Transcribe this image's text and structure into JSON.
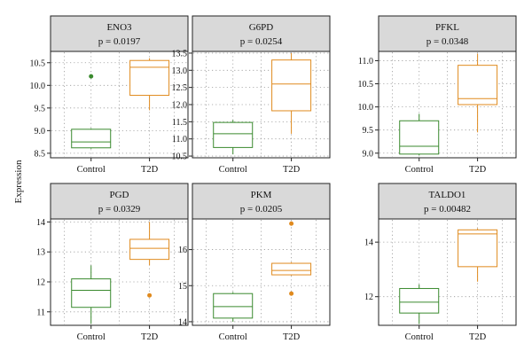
{
  "ylabel": "Expression",
  "colors": {
    "control": "#3a8a2e",
    "t2d": "#e08a1e",
    "header_bg": "#d9d9d9",
    "grid": "#9a9a9a"
  },
  "chart_data": [
    {
      "type": "box",
      "gene": "ENO3",
      "pvalue": "p = 0.0197",
      "categories": [
        "Control",
        "T2D"
      ],
      "ylim": [
        8.4,
        10.75
      ],
      "yticks": [
        "8.5",
        "9.0",
        "9.5",
        "10.0",
        "10.5"
      ],
      "boxes": [
        {
          "name": "Control",
          "whislo": 8.6,
          "q1": 8.62,
          "med": 8.75,
          "q3": 9.03,
          "whishi": 9.05,
          "outliers": [
            10.2
          ]
        },
        {
          "name": "T2D",
          "whislo": 9.45,
          "q1": 9.78,
          "med": 10.4,
          "q3": 10.55,
          "whishi": 10.6,
          "outliers": []
        }
      ]
    },
    {
      "type": "box",
      "gene": "G6PD",
      "pvalue": "p = 0.0254",
      "categories": [
        "Control",
        "T2D"
      ],
      "ylim": [
        10.45,
        13.55
      ],
      "yticks": [
        "10.5",
        "11.0",
        "11.5",
        "12.0",
        "12.5",
        "13.0",
        "13.5"
      ],
      "boxes": [
        {
          "name": "Control",
          "whislo": 10.55,
          "q1": 10.75,
          "med": 11.15,
          "q3": 11.48,
          "whishi": 11.55,
          "outliers": []
        },
        {
          "name": "T2D",
          "whislo": 11.15,
          "q1": 11.82,
          "med": 12.6,
          "q3": 13.3,
          "whishi": 13.5,
          "outliers": []
        }
      ]
    },
    {
      "type": "box",
      "gene": "PFKL",
      "pvalue": "p = 0.0348",
      "categories": [
        "Control",
        "T2D"
      ],
      "ylim": [
        8.9,
        11.2
      ],
      "yticks": [
        "9.0",
        "9.5",
        "10.0",
        "10.5",
        "11.0"
      ],
      "boxes": [
        {
          "name": "Control",
          "whislo": 8.95,
          "q1": 8.98,
          "med": 9.15,
          "q3": 9.7,
          "whishi": 9.85,
          "outliers": []
        },
        {
          "name": "T2D",
          "whislo": 9.45,
          "q1": 10.05,
          "med": 10.18,
          "q3": 10.9,
          "whishi": 11.15,
          "outliers": []
        }
      ]
    },
    {
      "type": "box",
      "gene": "PGD",
      "pvalue": "p = 0.0329",
      "categories": [
        "Control",
        "T2D"
      ],
      "ylim": [
        10.55,
        14.1
      ],
      "yticks": [
        "11",
        "12",
        "13",
        "14"
      ],
      "boxes": [
        {
          "name": "Control",
          "whislo": 10.6,
          "q1": 11.15,
          "med": 11.72,
          "q3": 12.1,
          "whishi": 12.55,
          "outliers": []
        },
        {
          "name": "T2D",
          "whislo": 12.55,
          "q1": 12.75,
          "med": 13.12,
          "q3": 13.42,
          "whishi": 14.0,
          "outliers": [
            11.55
          ]
        }
      ]
    },
    {
      "type": "box",
      "gene": "PKM",
      "pvalue": "p = 0.0205",
      "categories": [
        "Control",
        "T2D"
      ],
      "ylim": [
        13.9,
        16.85
      ],
      "yticks": [
        "14",
        "15",
        "16"
      ],
      "boxes": [
        {
          "name": "Control",
          "whislo": 14.0,
          "q1": 14.1,
          "med": 14.42,
          "q3": 14.78,
          "whishi": 14.82,
          "outliers": []
        },
        {
          "name": "T2D",
          "whislo": 15.28,
          "q1": 15.3,
          "med": 15.42,
          "q3": 15.62,
          "whishi": 15.65,
          "outliers": [
            16.72,
            14.78
          ]
        }
      ]
    },
    {
      "type": "box",
      "gene": "TALDO1",
      "pvalue": "p = 0.00482",
      "categories": [
        "Control",
        "T2D"
      ],
      "ylim": [
        10.95,
        14.85
      ],
      "yticks": [
        "12",
        "14"
      ],
      "boxes": [
        {
          "name": "Control",
          "whislo": 11.0,
          "q1": 11.4,
          "med": 11.8,
          "q3": 12.3,
          "whishi": 12.45,
          "outliers": []
        },
        {
          "name": "T2D",
          "whislo": 12.55,
          "q1": 13.1,
          "med": 14.3,
          "q3": 14.45,
          "whishi": 14.5,
          "outliers": []
        }
      ]
    }
  ]
}
